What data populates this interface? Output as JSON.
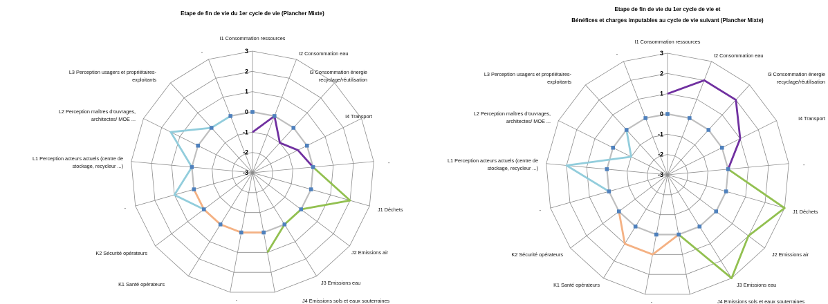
{
  "chart_data": [
    {
      "type": "radar",
      "title": [
        "Etape de fin de vie du 1er cycle de vie (Plancher Mixte)"
      ],
      "axes": [
        "I1 Consommation ressources",
        "I2 Consommation eau",
        "I3 Consommation énergie recyclage/réutilisation",
        "I4 Transport",
        "-",
        "J1 Déchets",
        "J2 Emissions air",
        "J3 Emissions eau",
        "J4 Emissions sols et eaux souterraines",
        "-",
        "K1 Santé opérateurs",
        "K2 Sécurité opérateurs",
        "-",
        "L1 Perception acteurs actuels (centre de stockage, recycleur ...)",
        "L2 Perception maîtres d'ouvrages, architectes/ MOE ...",
        "L3 Perception usagers et propriétaires-exploitants",
        "-"
      ],
      "ticks": [
        "3",
        "2",
        "1",
        "0",
        "-1",
        "-2",
        "-3"
      ],
      "rlim": [
        -3,
        3
      ],
      "grid": true,
      "series": [
        {
          "values": [
            0,
            0,
            0,
            0,
            0,
            0,
            0,
            0,
            0,
            0,
            0,
            0,
            0,
            0,
            0,
            0,
            0
          ],
          "color": "#bfbfbf",
          "marker": true
        },
        {
          "values": [
            -1,
            0,
            -1,
            -0.5,
            0
          ],
          "start_axis": 0,
          "color": "#7030a0"
        },
        {
          "values": [
            0,
            2,
            0,
            0,
            1
          ],
          "start_axis": 4,
          "color": "#92c050"
        },
        {
          "values": [
            0,
            0,
            0,
            0,
            0
          ],
          "start_axis": 8,
          "color": "#f4b183"
        },
        {
          "values": [
            0,
            1,
            0,
            1.5,
            0,
            0
          ],
          "start_axis": 11,
          "color": "#92cddc"
        }
      ]
    },
    {
      "type": "radar",
      "title": [
        "Etape de fin de vie du 1er cycle de vie et",
        "Bénéfices et charges imputables au cycle de vie suivant (Plancher Mixte)"
      ],
      "axes": [
        "I1 Consommation ressources",
        "I2 Consommation eau",
        "I3 Consommation énergie recyclage/réutilisation",
        "I4 Transport",
        "-",
        "J1 Déchets",
        "J2 Emissions air",
        "J3 Emissions eau",
        "J4 Emissions sols et eaux souterraines",
        "-",
        "K1 Santé opérateurs",
        "K2 Sécurité opérateurs",
        "-",
        "L1 Perception acteurs actuels (centre de stockage, recycleur ...)",
        "L2 Perception maîtres d'ouvrages, architectes/ MOE ...",
        "L3 Perception usagers et propriétaires-exploitants",
        "-"
      ],
      "ticks": [
        "3",
        "2",
        "1",
        "0",
        "-1",
        "-2",
        "-3"
      ],
      "rlim": [
        -3,
        3
      ],
      "grid": true,
      "series": [
        {
          "values": [
            0,
            0,
            0,
            0,
            0,
            0,
            0,
            0,
            0,
            0,
            0,
            0,
            0,
            0,
            0,
            0,
            0
          ],
          "color": "#bfbfbf",
          "marker": true
        },
        {
          "values": [
            1,
            2,
            2,
            1,
            0
          ],
          "start_axis": 0,
          "color": "#7030a0"
        },
        {
          "values": [
            0,
            3,
            2,
            3,
            0
          ],
          "start_axis": 4,
          "color": "#92c050"
        },
        {
          "values": [
            0,
            1,
            1,
            0
          ],
          "start_axis": 8,
          "color": "#f4b183"
        },
        {
          "values": [
            0,
            2,
            -1,
            0
          ],
          "start_axis": 12,
          "color": "#92cddc"
        }
      ]
    }
  ]
}
